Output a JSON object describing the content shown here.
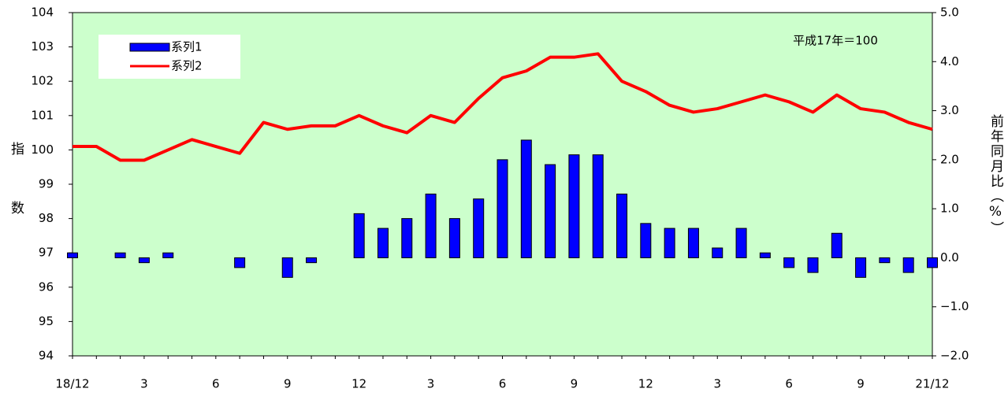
{
  "chart_data": {
    "type": "combo",
    "annotation": "平成17年＝100",
    "ylabel": "指数",
    "y2label": "前年同月比（%）",
    "categories": [
      "18/12",
      null,
      null,
      "3",
      null,
      null,
      "6",
      null,
      null,
      "9",
      null,
      null,
      "12",
      null,
      null,
      "3",
      null,
      null,
      "6",
      null,
      null,
      "9",
      null,
      null,
      "12",
      null,
      null,
      "3",
      null,
      null,
      "6",
      null,
      null,
      "9",
      null,
      null,
      "21/12"
    ],
    "series": [
      {
        "name": "系列1",
        "type": "bar",
        "axis": "y2",
        "color": "#0000ff",
        "values": [
          0.1,
          0.0,
          0.1,
          -0.1,
          0.1,
          0.0,
          0.0,
          -0.2,
          0.0,
          -0.4,
          -0.1,
          0.0,
          0.9,
          0.6,
          0.8,
          1.3,
          0.8,
          1.2,
          2.0,
          2.4,
          1.9,
          2.1,
          2.1,
          1.3,
          0.7,
          0.6,
          0.6,
          0.2,
          0.6,
          0.1,
          -0.2,
          -0.3,
          0.5,
          -0.4,
          -0.1,
          -0.3,
          -0.2
        ]
      },
      {
        "name": "系列2",
        "type": "line",
        "axis": "y",
        "color": "#ff0000",
        "values": [
          100.1,
          100.1,
          99.7,
          99.7,
          100.0,
          100.3,
          100.1,
          99.9,
          100.8,
          100.6,
          100.7,
          100.7,
          101.0,
          100.7,
          100.5,
          101.0,
          100.8,
          101.5,
          102.1,
          102.3,
          102.7,
          102.7,
          102.8,
          102.0,
          101.7,
          101.3,
          101.1,
          101.2,
          101.4,
          101.6,
          101.4,
          101.1,
          101.6,
          101.2,
          101.1,
          100.8,
          100.6
        ]
      }
    ],
    "ylim": [
      94,
      104
    ],
    "yticks": [
      94,
      95,
      96,
      97,
      98,
      99,
      100,
      101,
      102,
      103,
      104
    ],
    "y2lim": [
      -2.0,
      5.0
    ],
    "y2ticks": [
      {
        "value": -2.0,
        "label": "−2.0"
      },
      {
        "value": -1.0,
        "label": "−1.0"
      },
      {
        "value": 0.0,
        "label": "0.0"
      },
      {
        "value": 1.0,
        "label": "1.0"
      },
      {
        "value": 2.0,
        "label": "2.0"
      },
      {
        "value": 3.0,
        "label": "3.0"
      },
      {
        "value": 4.0,
        "label": "4.0"
      },
      {
        "value": 5.0,
        "label": "5.0"
      }
    ],
    "legend": "upper left",
    "background": "#ccffcc"
  }
}
